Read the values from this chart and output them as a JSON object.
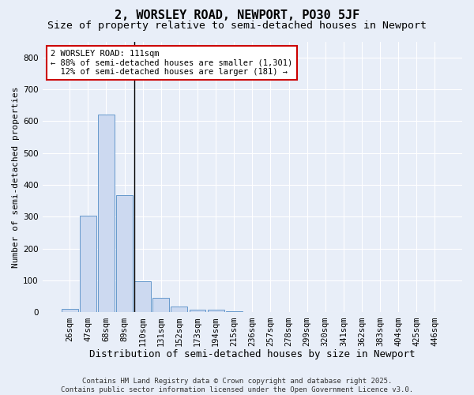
{
  "title1": "2, WORSLEY ROAD, NEWPORT, PO30 5JF",
  "title2": "Size of property relative to semi-detached houses in Newport",
  "xlabel": "Distribution of semi-detached houses by size in Newport",
  "ylabel": "Number of semi-detached properties",
  "categories": [
    "26sqm",
    "47sqm",
    "68sqm",
    "89sqm",
    "110sqm",
    "131sqm",
    "152sqm",
    "173sqm",
    "194sqm",
    "215sqm",
    "236sqm",
    "257sqm",
    "278sqm",
    "299sqm",
    "320sqm",
    "341sqm",
    "362sqm",
    "383sqm",
    "404sqm",
    "425sqm",
    "446sqm"
  ],
  "values": [
    12,
    303,
    620,
    368,
    99,
    47,
    18,
    9,
    9,
    3,
    0,
    0,
    0,
    0,
    0,
    0,
    0,
    0,
    0,
    0,
    0
  ],
  "bar_color": "#ccd9f0",
  "bar_edge_color": "#6699cc",
  "vline_x_index": 3.55,
  "annotation_line1": "2 WORSLEY ROAD: 111sqm",
  "annotation_line2": "← 88% of semi-detached houses are smaller (1,301)",
  "annotation_line3": "  12% of semi-detached houses are larger (181) →",
  "annotation_box_color": "#ffffff",
  "annotation_box_edge_color": "#cc0000",
  "ylim": [
    0,
    850
  ],
  "yticks": [
    0,
    100,
    200,
    300,
    400,
    500,
    600,
    700,
    800
  ],
  "bg_color": "#e8eef8",
  "plot_bg_color": "#e8eef8",
  "grid_color": "#ffffff",
  "footer_text": "Contains HM Land Registry data © Crown copyright and database right 2025.\nContains public sector information licensed under the Open Government Licence v3.0.",
  "title1_fontsize": 11,
  "title2_fontsize": 9.5,
  "xlabel_fontsize": 9,
  "ylabel_fontsize": 8,
  "tick_fontsize": 7.5,
  "annotation_fontsize": 7.5,
  "footer_fontsize": 6.5
}
